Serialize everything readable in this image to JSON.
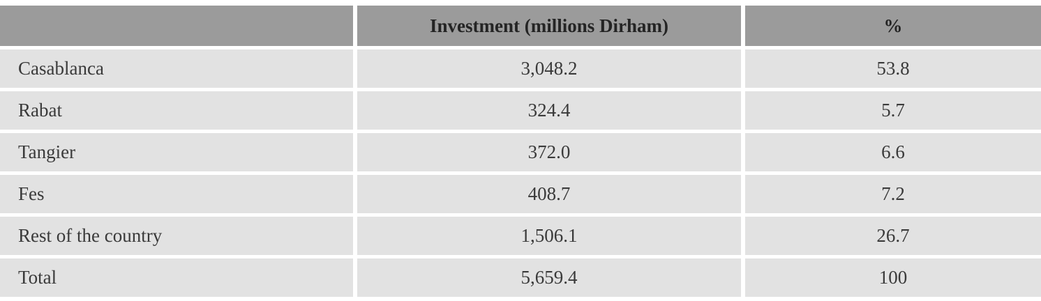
{
  "colors": {
    "header_bg": "#9b9b9b",
    "row_bg": "#e2e2e2",
    "text": "#3a3a3a",
    "header_text": "#242424",
    "separator": "#ffffff"
  },
  "table": {
    "columns": {
      "label": "",
      "investment": "Investment (millions Dirham)",
      "percent": "%"
    },
    "rows": [
      {
        "label": "Casablanca",
        "investment": "3,048.2",
        "percent": "53.8"
      },
      {
        "label": "Rabat",
        "investment": "324.4",
        "percent": "5.7"
      },
      {
        "label": "Tangier",
        "investment": "372.0",
        "percent": "6.6"
      },
      {
        "label": "Fes",
        "investment": "408.7",
        "percent": "7.2"
      },
      {
        "label": "Rest of the country",
        "investment": "1,506.1",
        "percent": "26.7"
      },
      {
        "label": "Total",
        "investment": "5,659.4",
        "percent": "100"
      }
    ]
  },
  "chart_data": {
    "type": "table",
    "title": "",
    "columns": [
      "",
      "Investment (millions Dirham)",
      "%"
    ],
    "rows": [
      [
        "Casablanca",
        3048.2,
        53.8
      ],
      [
        "Rabat",
        324.4,
        5.7
      ],
      [
        "Tangier",
        372.0,
        6.6
      ],
      [
        "Fes",
        408.7,
        7.2
      ],
      [
        "Rest of the country",
        1506.1,
        26.7
      ],
      [
        "Total",
        5659.4,
        100
      ]
    ]
  }
}
